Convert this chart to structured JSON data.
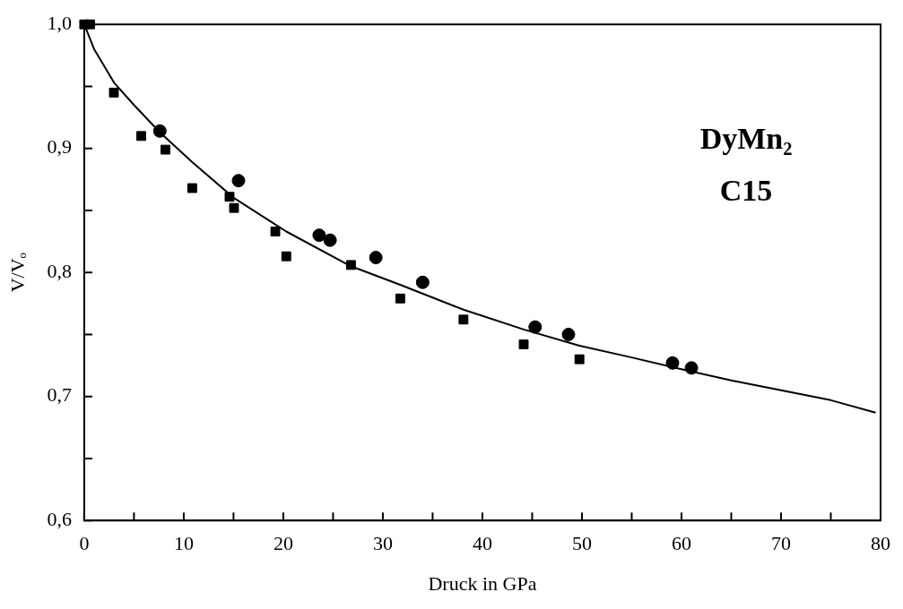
{
  "chart_data": {
    "type": "scatter",
    "xlabel": "Druck in GPa",
    "ylabel": "V/Vₒ",
    "annotations": [
      "DyMn₂",
      "C15"
    ],
    "xlim": [
      0,
      80
    ],
    "ylim": [
      0.6,
      1.0
    ],
    "xticks": [
      0,
      {
        "value": 5,
        "label": null
      },
      10,
      {
        "value": 15,
        "label": null
      },
      20,
      {
        "value": 25,
        "label": null
      },
      30,
      {
        "value": 35,
        "label": null
      },
      40,
      {
        "value": 45,
        "label": null
      },
      50,
      {
        "value": 55,
        "label": null
      },
      60,
      {
        "value": 65,
        "label": null
      },
      70,
      {
        "value": 75,
        "label": null
      },
      80
    ],
    "yticks": [
      {
        "value": 0.6,
        "label": "0,6"
      },
      {
        "value": 0.65,
        "label": null
      },
      {
        "value": 0.7,
        "label": "0,7"
      },
      {
        "value": 0.75,
        "label": null
      },
      {
        "value": 0.8,
        "label": "0,8"
      },
      {
        "value": 0.85,
        "label": null
      },
      {
        "value": 0.9,
        "label": "0,9"
      },
      {
        "value": 0.95,
        "label": null
      },
      {
        "value": 1.0,
        "label": "1,0"
      }
    ],
    "grid": false,
    "legend": false,
    "series": [
      {
        "type": "scatter",
        "marker": "square",
        "color": "#000000",
        "x": [
          0,
          0.6,
          2.98,
          5.73,
          8.16,
          10.85,
          14.6,
          15.05,
          19.2,
          20.3,
          26.8,
          31.75,
          38.1,
          44.15,
          49.75
        ],
        "values": [
          1.0,
          1.0,
          0.945,
          0.91,
          0.899,
          0.868,
          0.861,
          0.852,
          0.833,
          0.813,
          0.806,
          0.779,
          0.762,
          0.742,
          0.73
        ]
      },
      {
        "type": "scatter",
        "marker": "circle",
        "color": "#000000",
        "x": [
          7.6,
          15.5,
          23.6,
          24.7,
          29.3,
          34.0,
          45.3,
          48.65,
          59.1,
          61.0
        ],
        "values": [
          0.914,
          0.874,
          0.83,
          0.826,
          0.812,
          0.792,
          0.756,
          0.75,
          0.727,
          0.723
        ]
      },
      {
        "type": "line",
        "marker": "none",
        "color": "#000000",
        "x": [
          0,
          1,
          3,
          5,
          7.6,
          10.85,
          15.05,
          20.3,
          26.8,
          31.75,
          38.1,
          44.15,
          49.75,
          54.7,
          60,
          65,
          70,
          75,
          79.5
        ],
        "values": [
          1.0,
          0.98,
          0.953,
          0.935,
          0.913,
          0.889,
          0.86,
          0.833,
          0.805,
          0.79,
          0.77,
          0.754,
          0.741,
          0.732,
          0.722,
          0.713,
          0.705,
          0.697,
          0.687
        ]
      }
    ]
  }
}
